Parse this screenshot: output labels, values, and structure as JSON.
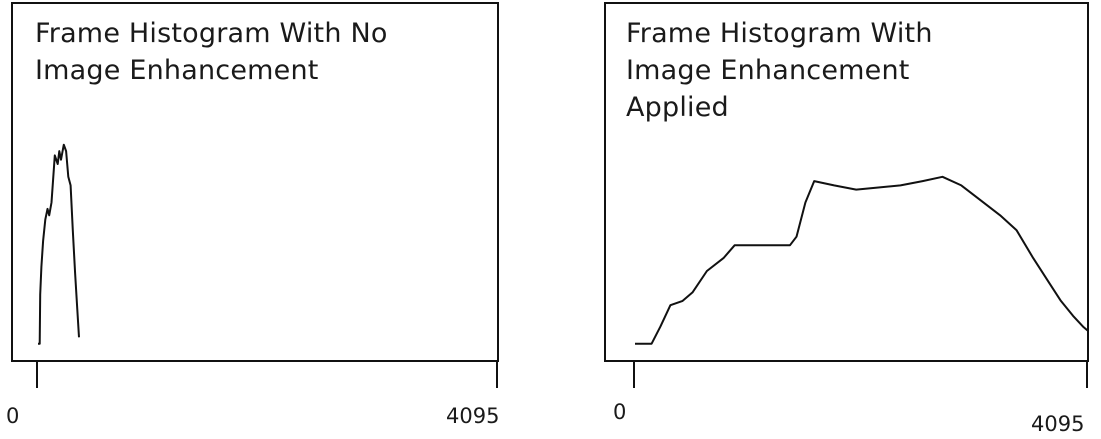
{
  "chart_data": [
    {
      "type": "line",
      "title": "Frame Histogram With No Image Enhancement",
      "title_lines": [
        "Frame Histogram With No",
        "Image Enhancement"
      ],
      "xlabel": "",
      "ylabel": "",
      "xlim": [
        0,
        4095
      ],
      "x_ticks": [
        {
          "value": 0,
          "label": "0"
        },
        {
          "value": 4095,
          "label": "4095"
        }
      ],
      "series": [
        {
          "points": [
            [
              0,
              0.02
            ],
            [
              15,
              0.02
            ],
            [
              20,
              0.25
            ],
            [
              30,
              0.38
            ],
            [
              45,
              0.5
            ],
            [
              65,
              0.6
            ],
            [
              85,
              0.65
            ],
            [
              100,
              0.62
            ],
            [
              120,
              0.68
            ],
            [
              150,
              0.9
            ],
            [
              175,
              0.86
            ],
            [
              190,
              0.92
            ],
            [
              205,
              0.88
            ],
            [
              230,
              0.95
            ],
            [
              250,
              0.92
            ],
            [
              270,
              0.8
            ],
            [
              290,
              0.76
            ],
            [
              310,
              0.55
            ],
            [
              330,
              0.35
            ],
            [
              350,
              0.18
            ],
            [
              365,
              0.05
            ]
          ]
        }
      ],
      "grid": false
    },
    {
      "type": "line",
      "title": "Frame Histogram With Image Enhancement Applied",
      "title_lines": [
        "Frame Histogram With",
        "Image Enhancement",
        "Applied"
      ],
      "xlabel": "",
      "ylabel": "",
      "xlim": [
        0,
        4095
      ],
      "x_ticks": [
        {
          "value": 0,
          "label": "0"
        },
        {
          "value": 4095,
          "label": "4095"
        }
      ],
      "series": [
        {
          "points": [
            [
              0,
              0.02
            ],
            [
              150,
              0.02
            ],
            [
              230,
              0.1
            ],
            [
              320,
              0.2
            ],
            [
              430,
              0.22
            ],
            [
              520,
              0.26
            ],
            [
              650,
              0.36
            ],
            [
              800,
              0.42
            ],
            [
              900,
              0.48
            ],
            [
              1100,
              0.48
            ],
            [
              1250,
              0.48
            ],
            [
              1400,
              0.48
            ],
            [
              1460,
              0.52
            ],
            [
              1540,
              0.68
            ],
            [
              1620,
              0.78
            ],
            [
              1800,
              0.76
            ],
            [
              2000,
              0.74
            ],
            [
              2200,
              0.75
            ],
            [
              2400,
              0.76
            ],
            [
              2600,
              0.78
            ],
            [
              2780,
              0.8
            ],
            [
              2950,
              0.76
            ],
            [
              3100,
              0.7
            ],
            [
              3300,
              0.62
            ],
            [
              3450,
              0.55
            ],
            [
              3600,
              0.42
            ],
            [
              3750,
              0.3
            ],
            [
              3850,
              0.22
            ],
            [
              3960,
              0.15
            ],
            [
              4050,
              0.1
            ],
            [
              4095,
              0.08
            ]
          ]
        }
      ],
      "grid": false
    }
  ]
}
